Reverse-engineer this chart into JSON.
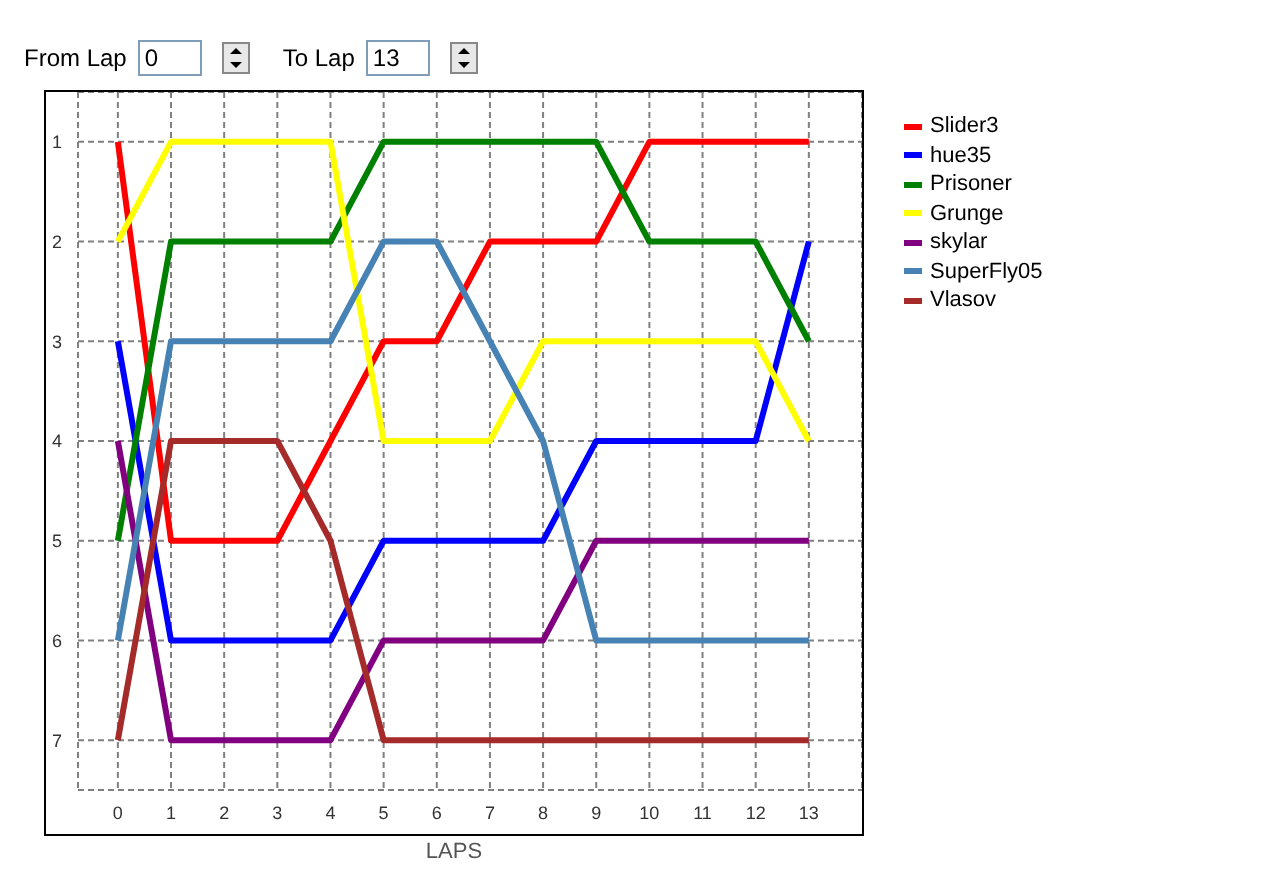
{
  "chart_data": {
    "type": "line",
    "xlabel": "LAPS",
    "annotations": [
      "From Lap",
      "0",
      "To Lap",
      "13"
    ],
    "x": [
      0,
      1,
      2,
      3,
      4,
      5,
      6,
      7,
      8,
      9,
      10,
      11,
      12,
      13
    ],
    "xlim": [
      -0.75,
      14
    ],
    "xticks": [
      0,
      1,
      2,
      3,
      4,
      5,
      6,
      7,
      8,
      9,
      10,
      11,
      12,
      13
    ],
    "ylim": [
      7.5,
      0.5
    ],
    "yticks": [
      1,
      2,
      3,
      4,
      5,
      6,
      7
    ],
    "grid": true,
    "legend": "right",
    "line_style": "solid",
    "series": [
      {
        "name": "Slider3",
        "color": "#ff0000",
        "values": [
          1,
          5,
          5,
          5,
          4,
          3,
          3,
          2,
          2,
          2,
          1,
          1,
          1,
          1
        ]
      },
      {
        "name": "hue35",
        "color": "#0000ff",
        "values": [
          3,
          6,
          6,
          6,
          6,
          5,
          5,
          5,
          5,
          4,
          4,
          4,
          4,
          2
        ]
      },
      {
        "name": "Prisoner",
        "color": "#008000",
        "values": [
          5,
          2,
          2,
          2,
          2,
          1,
          1,
          1,
          1,
          1,
          2,
          2,
          2,
          3
        ]
      },
      {
        "name": "Grunge",
        "color": "#ffff00",
        "values": [
          2,
          1,
          1,
          1,
          1,
          4,
          4,
          4,
          3,
          3,
          3,
          3,
          3,
          4
        ]
      },
      {
        "name": "skylar",
        "color": "#800080",
        "values": [
          4,
          7,
          7,
          7,
          7,
          6,
          6,
          6,
          6,
          5,
          5,
          5,
          5,
          5
        ]
      },
      {
        "name": "SuperFly05",
        "color": "#4682b4",
        "values": [
          6,
          3,
          3,
          3,
          3,
          2,
          2,
          3,
          4,
          6,
          6,
          6,
          6,
          6
        ]
      },
      {
        "name": "Vlasov",
        "color": "#a52a2a",
        "values": [
          7,
          4,
          4,
          4,
          5,
          7,
          7,
          7,
          7,
          7,
          7,
          7,
          7,
          7
        ]
      }
    ]
  }
}
